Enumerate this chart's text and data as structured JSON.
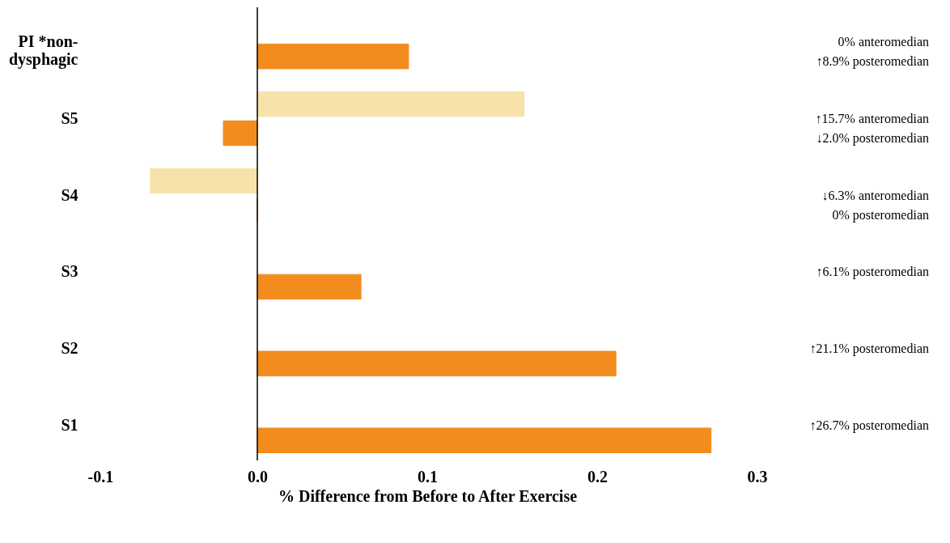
{
  "chart_data": {
    "type": "bar",
    "orientation": "horizontal",
    "xlabel": "% Difference from Before to After Exercise",
    "categories": [
      "PI *non-dysphagic",
      "S5",
      "S4",
      "S3",
      "S2",
      "S1"
    ],
    "series": [
      {
        "color": "#f7e2ac",
        "values": [
          0,
          0.157,
          -0.063,
          null,
          null,
          null
        ]
      },
      {
        "color": "#f28c1e",
        "values": [
          0.089,
          -0.02,
          0,
          0.061,
          0.211,
          0.267
        ]
      }
    ],
    "annotations": [
      "0% anteromedian\n↑8.9% posteromedian",
      "↑15.7% anteromedian\n↓2.0% posteromedian",
      "↓6.3% anteromedian\n0% posteromedian",
      "↑6.1% posteromedian",
      "↑21.1% posteromedian",
      "↑26.7% posteromedian"
    ],
    "ref_lines": [
      {
        "axis": "x",
        "value": 0,
        "color": "#000000"
      }
    ],
    "xlim": [
      -0.1,
      0.3
    ],
    "xticks": [
      {
        "value": -0.1,
        "label": "-0.1"
      },
      {
        "value": 0,
        "label": "0.0"
      },
      {
        "value": 0.1,
        "label": "0.1"
      },
      {
        "value": 0.2,
        "label": "0.2"
      },
      {
        "value": 0.3,
        "label": "0.3"
      }
    ],
    "grid": false
  }
}
